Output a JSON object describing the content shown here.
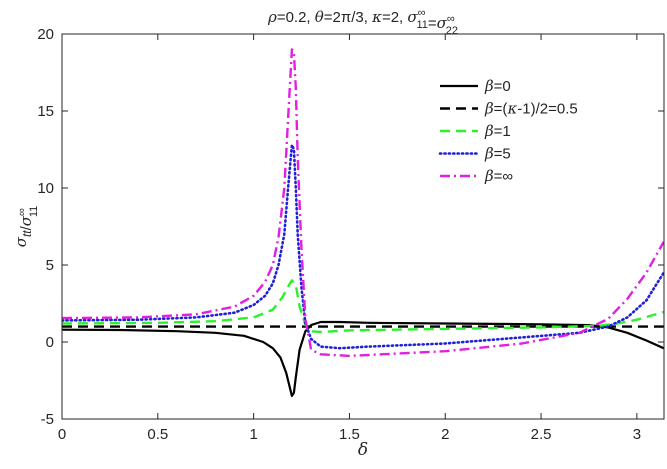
{
  "chart_data": {
    "type": "line",
    "title_parts": [
      {
        "t": "ρ",
        "s": "i"
      },
      {
        "t": "=0.2,  ",
        "s": "n"
      },
      {
        "t": "θ",
        "s": "i"
      },
      {
        "t": "=2π/3,  ",
        "s": "n"
      },
      {
        "t": "κ",
        "s": "i"
      },
      {
        "t": "=2,  ",
        "s": "n"
      },
      {
        "t": "σ",
        "s": "i"
      },
      {
        "t": "∞",
        "s": "sup",
        "pair": "11"
      },
      {
        "t": "=",
        "s": "n"
      },
      {
        "t": "σ",
        "s": "i"
      },
      {
        "t": "∞",
        "s": "sup",
        "pair": "22"
      }
    ],
    "xlabel": "δ",
    "ylabel_parts": [
      {
        "t": "σ",
        "s": "i"
      },
      {
        "t": "tt",
        "s": "sub"
      },
      {
        "t": "/",
        "s": "n"
      },
      {
        "t": "σ",
        "s": "i"
      },
      {
        "t": "∞",
        "s": "sup",
        "pair": "11"
      }
    ],
    "xlim": [
      0,
      3.14159
    ],
    "ylim": [
      -5,
      20
    ],
    "xticks": [
      0,
      0.5,
      1,
      1.5,
      2,
      2.5,
      3
    ],
    "xtick_labels": [
      "0",
      "0.5",
      "1",
      "1.5",
      "2",
      "2.5",
      "3"
    ],
    "yticks": [
      -5,
      0,
      5,
      10,
      15,
      20
    ],
    "ytick_labels": [
      "-5",
      "0",
      "5",
      "10",
      "15",
      "20"
    ],
    "grid": false,
    "legend_position": "top-right",
    "series": [
      {
        "name_parts": [
          {
            "t": "β",
            "s": "i"
          },
          {
            "t": "=0",
            "s": "n"
          }
        ],
        "color": "#000000",
        "dash": "solid",
        "x": [
          0,
          0.3,
          0.6,
          0.8,
          0.95,
          1.05,
          1.1,
          1.14,
          1.17,
          1.19,
          1.2,
          1.21,
          1.22,
          1.24,
          1.27,
          1.3,
          1.35,
          1.45,
          1.6,
          2.0,
          2.5,
          2.75,
          2.85,
          2.95,
          3.05,
          3.14
        ],
        "y": [
          0.8,
          0.78,
          0.7,
          0.6,
          0.4,
          0.0,
          -0.4,
          -1.0,
          -2.0,
          -3.0,
          -3.5,
          -3.3,
          -2.3,
          -0.5,
          0.7,
          1.1,
          1.3,
          1.3,
          1.25,
          1.2,
          1.15,
          1.1,
          0.95,
          0.6,
          0.1,
          -0.4
        ]
      },
      {
        "name_parts": [
          {
            "t": "β",
            "s": "i"
          },
          {
            "t": "=(",
            "s": "n"
          },
          {
            "t": "κ",
            "s": "i"
          },
          {
            "t": "-1)/2=0.5",
            "s": "n"
          }
        ],
        "color": "#000000",
        "dash": "dashed",
        "x": [
          0,
          3.14
        ],
        "y": [
          1.0,
          1.0
        ]
      },
      {
        "name_parts": [
          {
            "t": "β",
            "s": "i"
          },
          {
            "t": "=1",
            "s": "n"
          }
        ],
        "color": "#2cf02c",
        "dash": "dashed",
        "x": [
          0,
          0.5,
          0.8,
          1.0,
          1.1,
          1.15,
          1.18,
          1.2,
          1.22,
          1.24,
          1.27,
          1.3,
          1.35,
          1.5,
          2.0,
          2.5,
          2.8,
          2.9,
          3.0,
          3.14
        ],
        "y": [
          1.2,
          1.25,
          1.35,
          1.6,
          2.1,
          2.9,
          3.6,
          4.0,
          3.7,
          2.3,
          1.1,
          0.7,
          0.65,
          0.75,
          0.85,
          0.95,
          1.05,
          1.2,
          1.45,
          1.95
        ]
      },
      {
        "name_parts": [
          {
            "t": "β",
            "s": "i"
          },
          {
            "t": "=5",
            "s": "n"
          }
        ],
        "color": "#2020d8",
        "dash": "dotted",
        "x": [
          0,
          0.4,
          0.7,
          0.9,
          1.0,
          1.06,
          1.1,
          1.13,
          1.16,
          1.18,
          1.2,
          1.21,
          1.22,
          1.23,
          1.25,
          1.27,
          1.3,
          1.35,
          1.45,
          1.6,
          2.0,
          2.4,
          2.7,
          2.85,
          2.95,
          3.05,
          3.14
        ],
        "y": [
          1.4,
          1.45,
          1.6,
          1.9,
          2.4,
          3.0,
          3.8,
          5.0,
          7.0,
          10.0,
          12.8,
          12.5,
          10.0,
          7.0,
          3.5,
          1.2,
          0.2,
          -0.3,
          -0.4,
          -0.3,
          -0.1,
          0.3,
          0.6,
          1.0,
          1.6,
          2.7,
          4.5
        ]
      },
      {
        "name_parts": [
          {
            "t": "β",
            "s": "i"
          },
          {
            "t": "=∞",
            "s": "n"
          }
        ],
        "color": "#e020e0",
        "dash": "dashdot",
        "x": [
          0,
          0.4,
          0.7,
          0.9,
          1.0,
          1.06,
          1.1,
          1.13,
          1.16,
          1.18,
          1.2,
          1.21,
          1.22,
          1.23,
          1.25,
          1.27,
          1.3,
          1.35,
          1.5,
          2.0,
          2.4,
          2.7,
          2.85,
          2.95,
          3.05,
          3.14
        ],
        "y": [
          1.55,
          1.6,
          1.8,
          2.3,
          3.0,
          3.9,
          5.0,
          6.8,
          10.0,
          14.5,
          19.0,
          18.8,
          16.5,
          12.0,
          6.0,
          1.5,
          -0.5,
          -0.8,
          -0.9,
          -0.6,
          -0.1,
          0.6,
          1.5,
          2.8,
          4.5,
          6.5
        ]
      }
    ]
  }
}
